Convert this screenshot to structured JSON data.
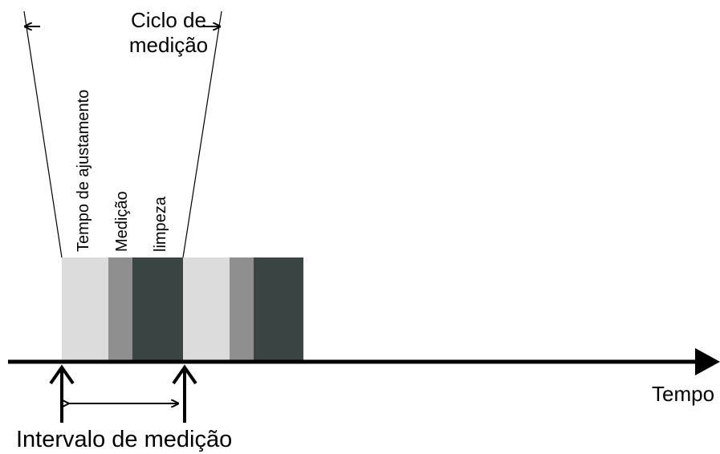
{
  "diagram": {
    "cycle_label": "Ciclo de medição",
    "phase_labels": {
      "settling": "Tempo de ajustamento",
      "measurement": "Medição",
      "cleaning": "limpeza"
    },
    "axis_label": "Tempo",
    "interval_label": "Intervalo de medição",
    "colors": {
      "settling": "#dcdcdc",
      "measurement": "#8f8f8f",
      "cleaning": "#3a4443",
      "lines": "#000000"
    }
  }
}
